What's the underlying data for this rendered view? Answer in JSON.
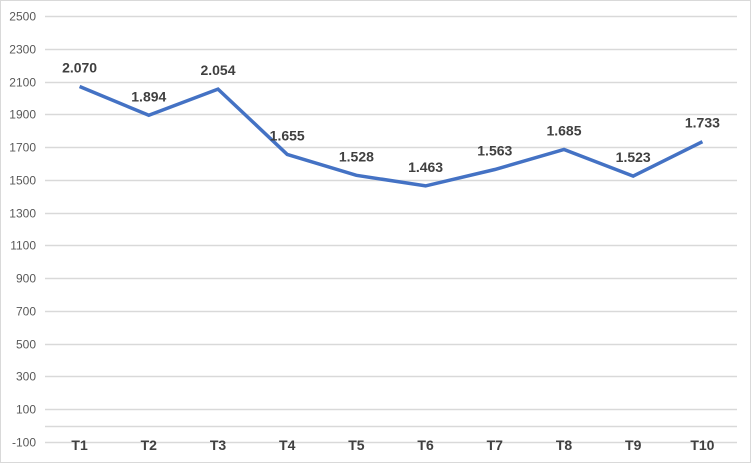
{
  "chart_data": {
    "type": "line",
    "title": "",
    "xlabel": "",
    "ylabel": "",
    "categories": [
      "T1",
      "T2",
      "T3",
      "T4",
      "T5",
      "T6",
      "T7",
      "T8",
      "T9",
      "T10"
    ],
    "series": [
      {
        "name": "Series 1",
        "values": [
          2070,
          1894,
          2054,
          1655,
          1528,
          1463,
          1563,
          1685,
          1523,
          1733
        ],
        "labels": [
          "2.070",
          "1.894",
          "2.054",
          "1.655",
          "1.528",
          "1.463",
          "1.563",
          "1.685",
          "1.523",
          "1.733"
        ],
        "color": "#4472c4"
      }
    ],
    "ylim": [
      -100,
      2500
    ],
    "yticks": [
      2500,
      2300,
      2100,
      1900,
      1700,
      1500,
      1300,
      1100,
      900,
      700,
      500,
      300,
      100,
      -100
    ],
    "grid": true,
    "legend": "none"
  },
  "colors": {
    "line": "#4472c4",
    "grid": "#d9d9d9",
    "axis_text": "#595959",
    "label_text": "#404040"
  }
}
